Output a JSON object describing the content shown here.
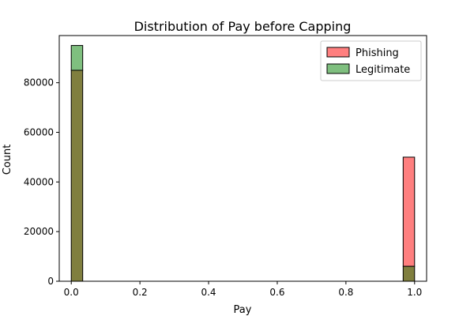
{
  "chart_data": {
    "type": "bar",
    "title": "Distribution of Pay before Capping",
    "xlabel": "Pay",
    "ylabel": "Count",
    "xlim": [
      -0.035,
      1.035
    ],
    "ylim": [
      0,
      99000
    ],
    "bins": 30,
    "xticks": [
      0.0,
      0.2,
      0.4,
      0.6,
      0.8,
      1.0
    ],
    "xtick_labels": [
      "0.0",
      "0.2",
      "0.4",
      "0.6",
      "0.8",
      "1.0"
    ],
    "yticks": [
      0,
      20000,
      40000,
      60000,
      80000
    ],
    "ytick_labels": [
      "0",
      "20000",
      "40000",
      "60000",
      "80000"
    ],
    "legend": {
      "position": "top-right"
    },
    "series": [
      {
        "name": "Phishing",
        "color": "#ff7f7f",
        "bins": [
          {
            "x0": 0.0,
            "x1": 0.0333,
            "count": 85000
          },
          {
            "x0": 0.9667,
            "x1": 1.0,
            "count": 50000
          }
        ]
      },
      {
        "name": "Legitimate",
        "color": "#7fbf7f",
        "bins": [
          {
            "x0": 0.0,
            "x1": 0.0333,
            "count": 95000
          },
          {
            "x0": 0.9667,
            "x1": 1.0,
            "count": 6000
          }
        ]
      }
    ],
    "overlap_color": "#807f3f"
  }
}
